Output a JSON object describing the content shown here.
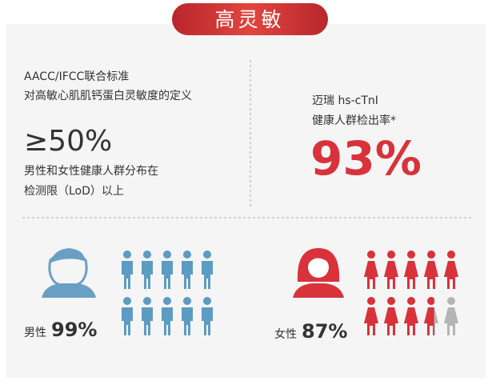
{
  "badge": "高灵敏",
  "left": {
    "lines": [
      "AACC/IFCC联合标准",
      "对高敏心肌肌钙蛋白灵敏度的定义"
    ],
    "big": "≥50%",
    "desc": [
      "男性和女性健康人群分布在",
      "检测限（LoD）以上"
    ]
  },
  "right": {
    "lines": [
      "迈瑞 hs-cTnI",
      "健康人群检出率*"
    ],
    "big": "93%"
  },
  "men": {
    "label": "男性",
    "value": 99,
    "value_label": "99%",
    "color": "#5d9cc2"
  },
  "women": {
    "label": "女性",
    "value": 87,
    "value_label": "87%",
    "color": "#d9323b"
  }
}
